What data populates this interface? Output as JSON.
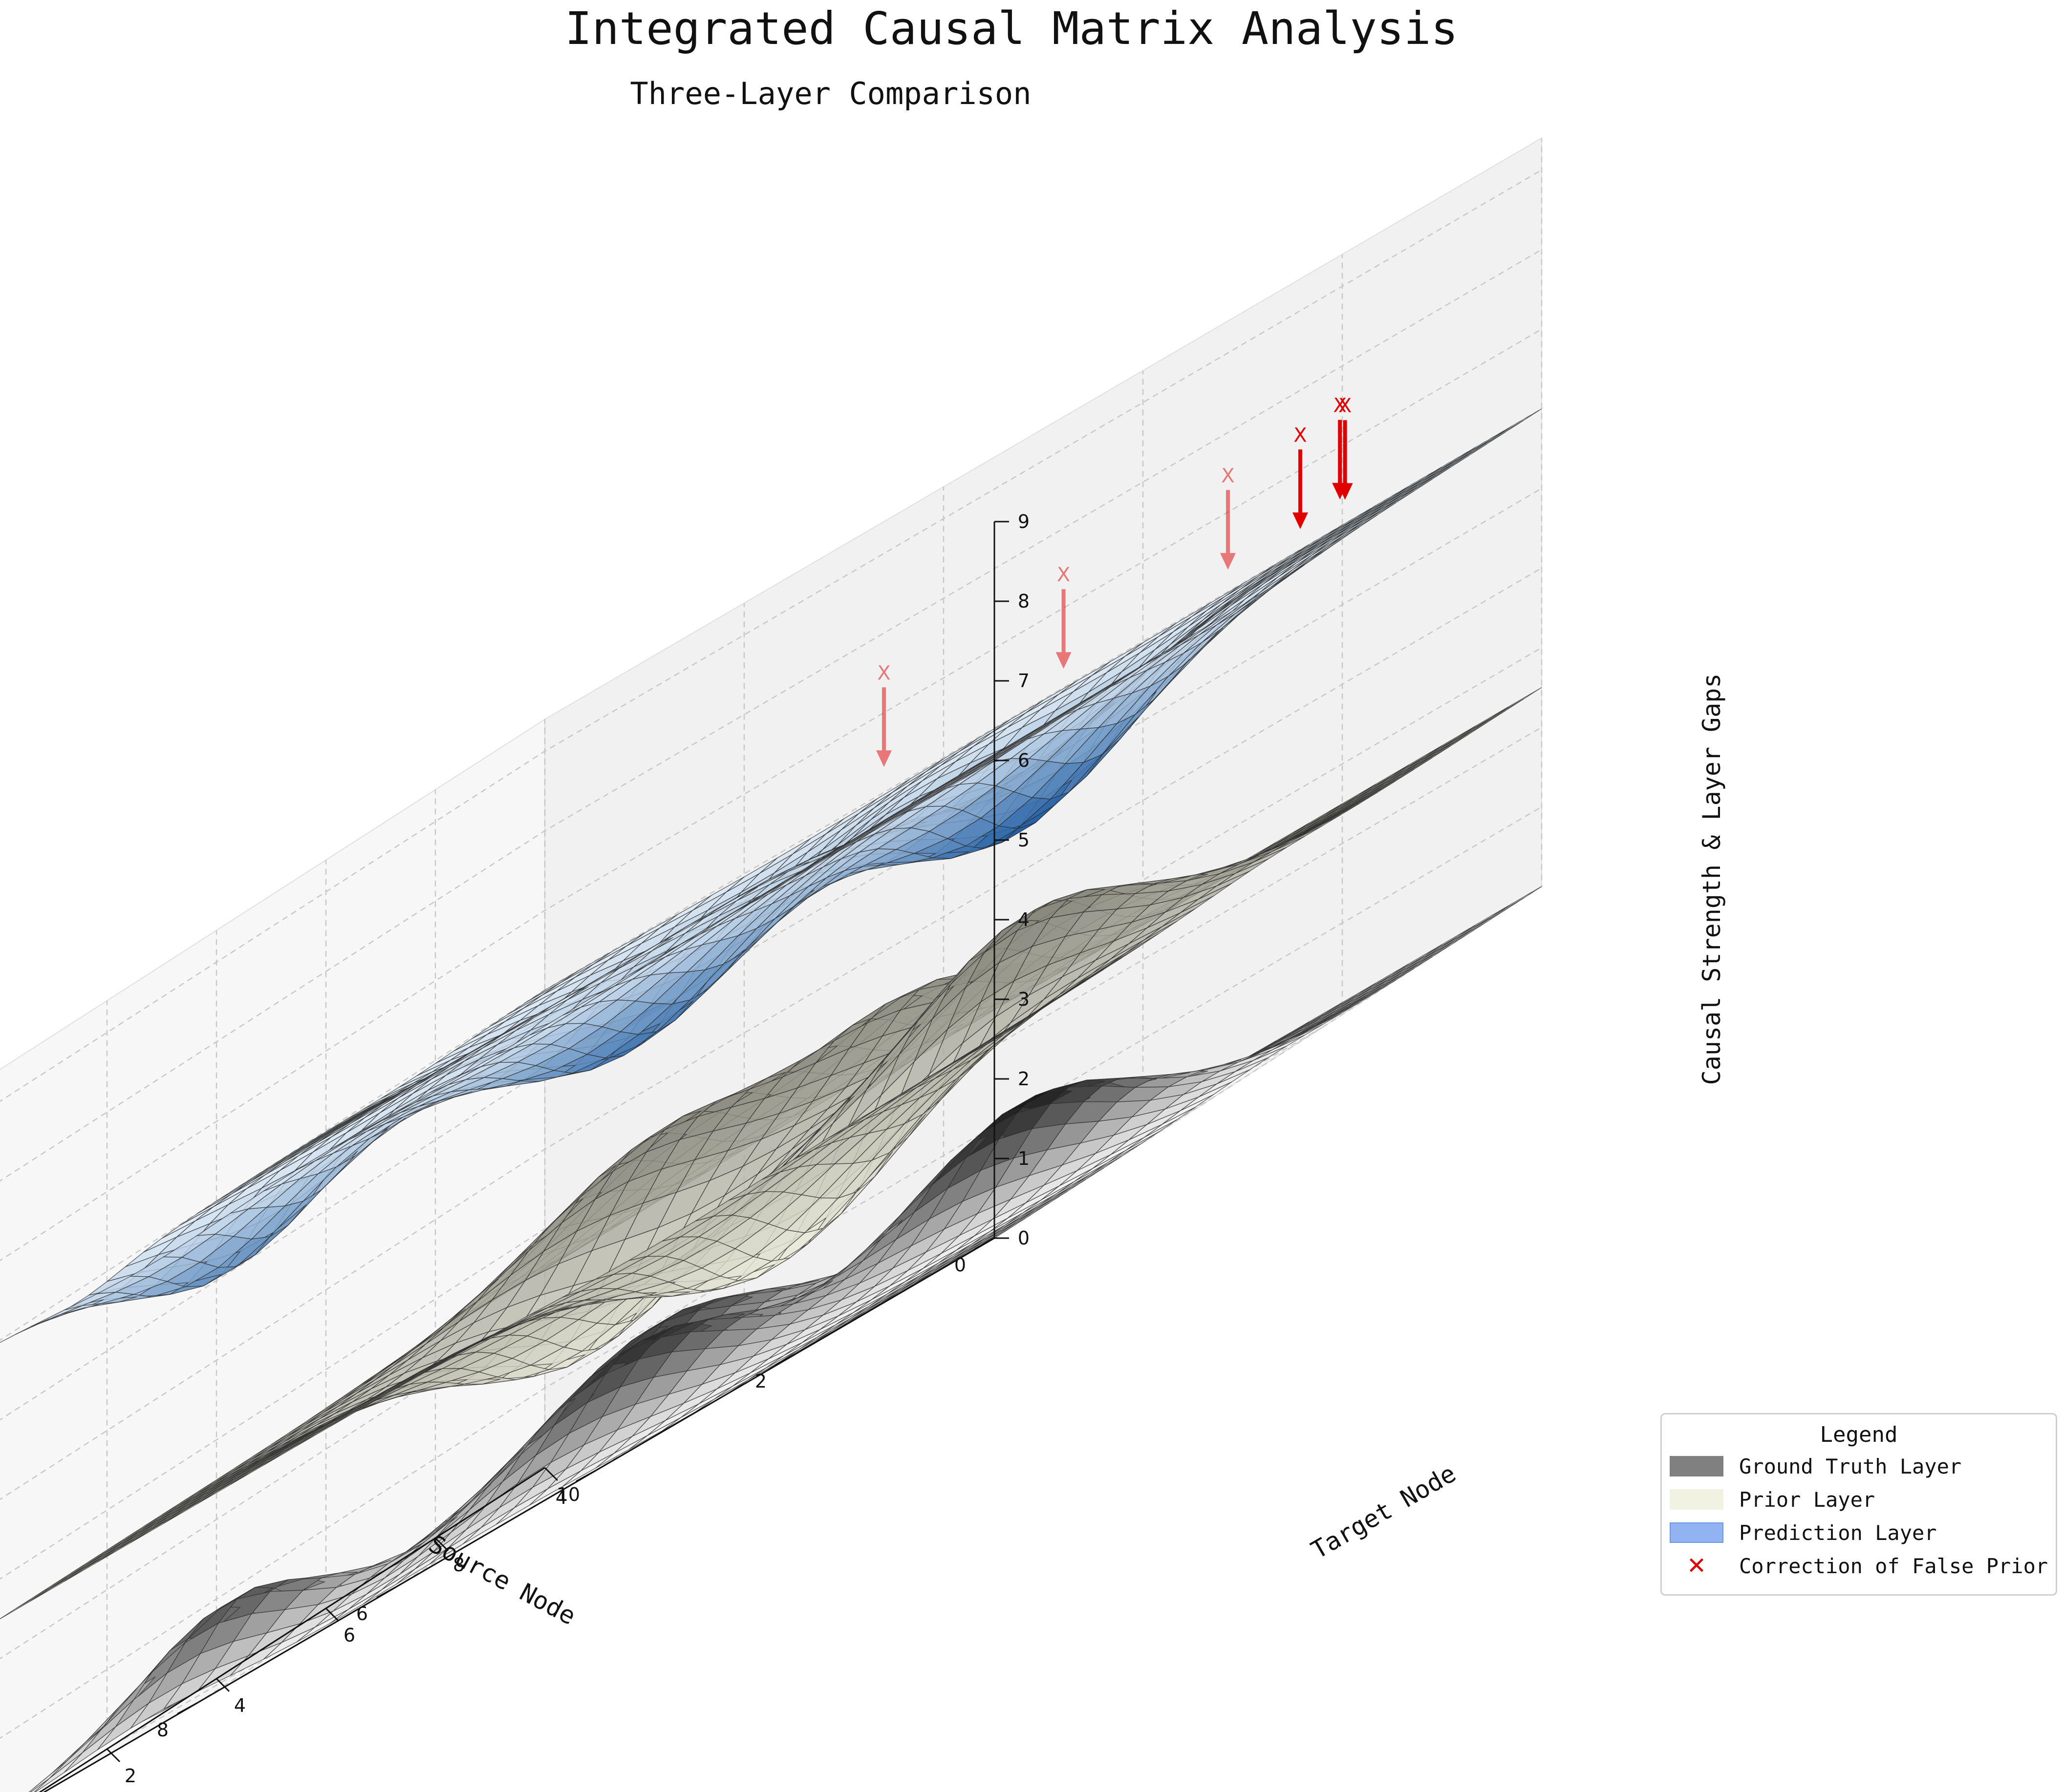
{
  "chart_data": {
    "type": "surface3d",
    "title": "Integrated Causal Matrix Analysis",
    "subtitle": "Three-Layer Comparison",
    "xlabel": "Source Node",
    "ylabel": "Target Node",
    "zlabel": "Causal Strength & Layer Gaps",
    "xlim": [
      0,
      10
    ],
    "ylim": [
      0,
      10
    ],
    "zlim": [
      0,
      9
    ],
    "x_ticks": [
      "0",
      "2",
      "4",
      "6",
      "8",
      "10"
    ],
    "y_ticks": [
      "0",
      "2",
      "4",
      "6",
      "8",
      "10"
    ],
    "z_ticks": [
      "0",
      "1",
      "2",
      "3",
      "4",
      "5",
      "6",
      "7",
      "8",
      "9"
    ],
    "grid": true,
    "legend_position": "bottom-right",
    "series": [
      {
        "name": "Ground Truth Layer",
        "colormap": "greys",
        "base_offset": 0,
        "peaks": [
          {
            "x": 2.5,
            "y": 5.0,
            "height": 1.3,
            "sigma": 1.0
          },
          {
            "x": 5.0,
            "y": 2.5,
            "height": 1.2,
            "sigma": 1.0
          },
          {
            "x": 7.5,
            "y": 7.5,
            "height": 1.1,
            "sigma": 1.0
          },
          {
            "x": 8.5,
            "y": 1.5,
            "height": 1.0,
            "sigma": 0.8
          },
          {
            "x": 4.0,
            "y": 7.5,
            "height": 0.9,
            "sigma": 0.9
          }
        ]
      },
      {
        "name": "Prior Layer",
        "colormap": "beige-to-grey",
        "base_offset": 2.5,
        "peaks": [
          {
            "x": 2.5,
            "y": 5.0,
            "height": 1.2,
            "sigma": 1.0
          },
          {
            "x": 7.5,
            "y": 7.5,
            "height": 1.0,
            "sigma": 1.0
          },
          {
            "x": 3.5,
            "y": 2.5,
            "height": -1.4,
            "sigma": 1.1
          },
          {
            "x": 6.5,
            "y": 4.5,
            "height": -1.2,
            "sigma": 1.0
          },
          {
            "x": 5.5,
            "y": 8.5,
            "height": 0.8,
            "sigma": 0.8
          }
        ]
      },
      {
        "name": "Prediction Layer",
        "colormap": "blues",
        "base_offset": 6.0,
        "peaks": [
          {
            "x": 2.5,
            "y": 5.0,
            "height": -1.3,
            "sigma": 1.0
          },
          {
            "x": 5.0,
            "y": 2.5,
            "height": -1.1,
            "sigma": 1.0
          },
          {
            "x": 7.5,
            "y": 7.5,
            "height": -1.0,
            "sigma": 1.0
          },
          {
            "x": 8.5,
            "y": 1.5,
            "height": -0.9,
            "sigma": 0.8
          },
          {
            "x": 4.0,
            "y": 7.5,
            "height": -0.8,
            "sigma": 0.9
          }
        ]
      }
    ],
    "corrections": {
      "name": "Correction of False Prior",
      "marker": "X",
      "color": "#e00000",
      "points": [
        {
          "x": 0.5,
          "y": 6.5
        },
        {
          "x": 0.6,
          "y": 7.5
        },
        {
          "x": 1.2,
          "y": 8.5
        },
        {
          "x": 1.5,
          "y": 7.0
        },
        {
          "x": 2.6,
          "y": 6.0
        },
        {
          "x": 5.5,
          "y": 8.0
        }
      ]
    }
  },
  "legend": {
    "title": "Legend",
    "items": [
      {
        "label": "Ground Truth Layer",
        "color": "#808080"
      },
      {
        "label": "Prior Layer",
        "color": "#f1f2e2"
      },
      {
        "label": "Prediction Layer",
        "color": "#92b3f2"
      },
      {
        "label": "Correction of False Prior",
        "color": "#e00000"
      }
    ]
  }
}
